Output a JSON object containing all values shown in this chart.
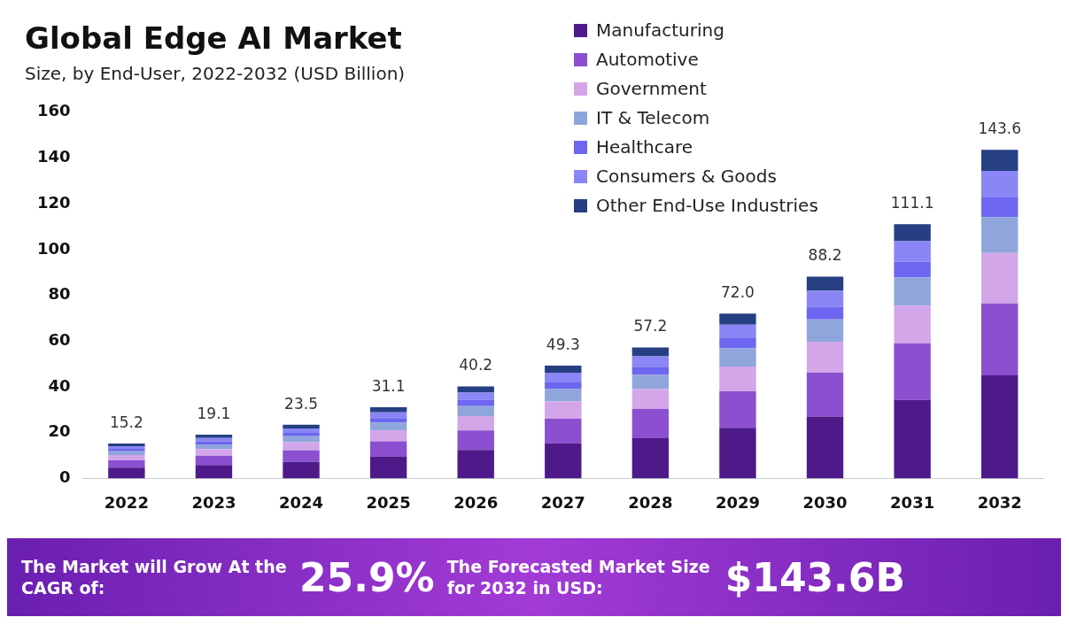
{
  "chart_data": {
    "type": "bar",
    "stacked": true,
    "title": "Global Edge AI Market",
    "subtitle": "Size, by End-User, 2022-2032 (USD Billion)",
    "categories": [
      "2022",
      "2023",
      "2024",
      "2025",
      "2026",
      "2027",
      "2028",
      "2029",
      "2030",
      "2031",
      "2032"
    ],
    "series": [
      {
        "name": "Manufacturing",
        "color": "#4e1a8a",
        "values": [
          4.7,
          5.9,
          7.2,
          9.6,
          12.4,
          15.3,
          17.6,
          22.1,
          27,
          34.3,
          45
        ]
      },
      {
        "name": "Automotive",
        "color": "#8b4fd0",
        "values": [
          3.2,
          4.0,
          5.0,
          6.6,
          8.5,
          10.8,
          12.7,
          16,
          19.3,
          24.8,
          31.5
        ]
      },
      {
        "name": "Government",
        "color": "#d3a6ea",
        "values": [
          2.3,
          2.9,
          3.6,
          4.8,
          6.3,
          7.5,
          8.8,
          10.8,
          13.4,
          16.4,
          22
        ]
      },
      {
        "name": "IT & Telecom",
        "color": "#8fa6dc",
        "values": [
          1.7,
          2.1,
          2.6,
          3.4,
          4.4,
          5.4,
          6.1,
          7.9,
          9.8,
          12.4,
          15.7
        ]
      },
      {
        "name": "Healthcare",
        "color": "#6d66f0",
        "values": [
          1.0,
          1.3,
          1.5,
          2.0,
          2.7,
          3.2,
          3.6,
          4.5,
          5.5,
          6.8,
          8.9
        ]
      },
      {
        "name": "Consumers & Goods",
        "color": "#8a86f5",
        "values": [
          1.2,
          1.5,
          1.9,
          2.5,
          3.2,
          4,
          4.5,
          5.9,
          7,
          8.9,
          11.3
        ]
      },
      {
        "name": "Other End-Use Industries",
        "color": "#253f82",
        "values": [
          1.1,
          1.4,
          1.7,
          2.2,
          2.7,
          3.1,
          3.9,
          4.8,
          6.2,
          7.5,
          9.2
        ]
      }
    ],
    "totals": [
      "15.2",
      "19.1",
      "23.5",
      "31.1",
      "40.2",
      "49.3",
      "57.2",
      "72.0",
      "88.2",
      "111.1",
      "143.6"
    ],
    "ylim": [
      0,
      160
    ],
    "yticks": [
      0,
      20,
      40,
      60,
      80,
      100,
      120,
      140,
      160
    ],
    "grid": false,
    "legend": "top right",
    "annotations": [
      "The Market will Grow At the CAGR of:",
      "25.9%",
      "The Forecasted Market Size for 2032 in USD:",
      "$143.6B"
    ]
  }
}
